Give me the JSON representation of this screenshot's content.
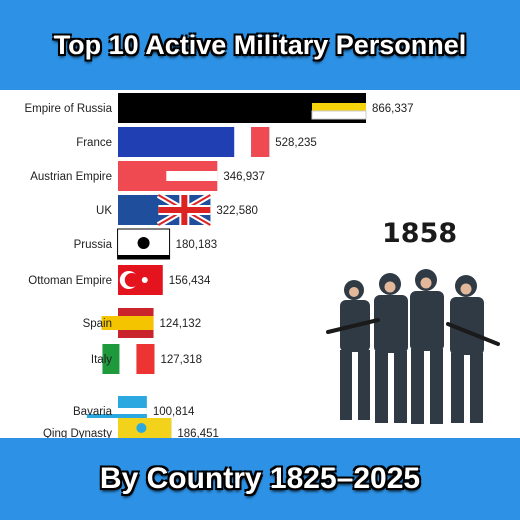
{
  "header": {
    "title": "Top 10 Active Military Personnel"
  },
  "footer": {
    "subtitle": "By Country 1825–2025"
  },
  "year": "1858",
  "chart_data": {
    "type": "bar",
    "orientation": "horizontal",
    "categories": [
      "Empire of Russia",
      "France",
      "Austrian Empire",
      "UK",
      "Prussia",
      "Ottoman Empire",
      "Spain",
      "Italy",
      "Bavaria",
      "Qing Dynasty"
    ],
    "values": [
      866337,
      528235,
      346937,
      322580,
      180183,
      156434,
      124132,
      127318,
      100814,
      186451
    ],
    "value_labels": [
      "866,337",
      "528,235",
      "346,937",
      "322,580",
      "180,183",
      "156,434",
      "124,132",
      "127,318",
      "100,814",
      "186,451"
    ],
    "xlim": [
      0,
      866337
    ],
    "colors": [
      "#000000",
      "#1f3fb3",
      "#ef4a52",
      "#1f4e9c",
      "#000000",
      "#e3141e",
      "#c9242b",
      "#1e9a3c",
      "#2ba8e0",
      "#2ba8e0"
    ],
    "legend": "none",
    "grid": false
  }
}
